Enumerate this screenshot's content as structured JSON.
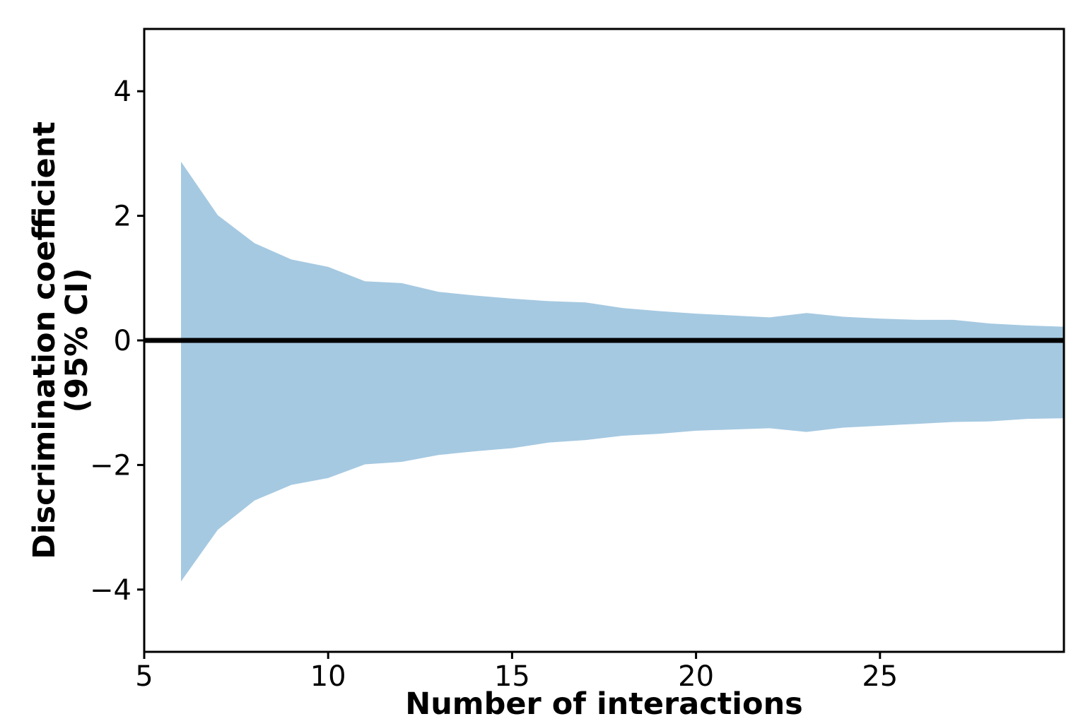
{
  "chart_data": {
    "type": "area",
    "title": "",
    "xlabel": "Number of interactions",
    "ylabel_lines": [
      "Discrimination coefficient",
      "(95% CI)"
    ],
    "x": [
      6,
      7,
      8,
      9,
      10,
      11,
      12,
      13,
      14,
      15,
      16,
      17,
      18,
      19,
      20,
      21,
      22,
      23,
      24,
      25,
      26,
      27,
      28,
      29,
      30
    ],
    "series": [
      {
        "name": "ci_upper",
        "values": [
          2.87,
          2.01,
          1.56,
          1.3,
          1.18,
          0.95,
          0.92,
          0.78,
          0.72,
          0.67,
          0.63,
          0.61,
          0.52,
          0.47,
          0.43,
          0.4,
          0.37,
          0.44,
          0.38,
          0.35,
          0.33,
          0.33,
          0.27,
          0.24,
          0.22
        ]
      },
      {
        "name": "ci_lower",
        "values": [
          -3.87,
          -3.04,
          -2.57,
          -2.32,
          -2.21,
          -1.99,
          -1.95,
          -1.84,
          -1.78,
          -1.73,
          -1.64,
          -1.6,
          -1.53,
          -1.5,
          -1.45,
          -1.43,
          -1.41,
          -1.47,
          -1.4,
          -1.37,
          -1.34,
          -1.31,
          -1.3,
          -1.26,
          -1.25
        ]
      }
    ],
    "reference_line_y": 0,
    "xlim": [
      5,
      30
    ],
    "ylim": [
      -5,
      5
    ],
    "xticks": [
      5,
      10,
      15,
      20,
      25
    ],
    "xtick_labels": [
      "5",
      "10",
      "15",
      "20",
      "25"
    ],
    "yticks": [
      4,
      2,
      0,
      -2,
      -4
    ],
    "ytick_labels": [
      "4",
      "2",
      "0",
      "−2",
      "−4"
    ],
    "grid": false,
    "legend": "none",
    "band_color": "#a5c9e1",
    "reference_line_color": "#000000",
    "axis_color": "#000000",
    "background_color": "#ffffff"
  }
}
